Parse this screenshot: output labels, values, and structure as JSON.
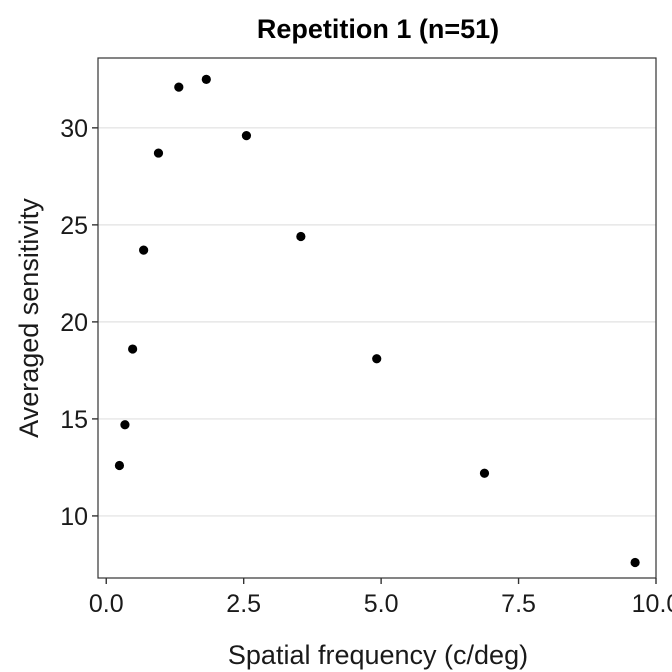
{
  "chart_data": {
    "type": "scatter",
    "title": "Repetition 1 (n=51)",
    "xlabel": "Spatial frequency (c/deg)",
    "ylabel": "Averaged sensitivity",
    "xlim": [
      -0.15,
      10.0
    ],
    "ylim": [
      6.8,
      33.6
    ],
    "xticks": [
      0.0,
      2.5,
      5.0,
      7.5,
      10.0
    ],
    "xtick_labels": [
      "0.0",
      "2.5",
      "5.0",
      "7.5",
      "10.0"
    ],
    "yticks": [
      10,
      15,
      20,
      25,
      30
    ],
    "ytick_labels": [
      "10",
      "15",
      "20",
      "25",
      "30"
    ],
    "grid": "horizontal-major",
    "legend": "none",
    "point_color": "#000000",
    "series": [
      {
        "x": [
          0.24,
          0.34,
          0.48,
          0.68,
          0.95,
          1.32,
          1.82,
          2.55,
          3.54,
          4.92,
          6.88,
          9.62
        ],
        "y": [
          12.6,
          14.7,
          18.6,
          23.7,
          28.7,
          32.1,
          32.5,
          29.6,
          24.4,
          18.1,
          12.2,
          7.6
        ]
      }
    ]
  }
}
